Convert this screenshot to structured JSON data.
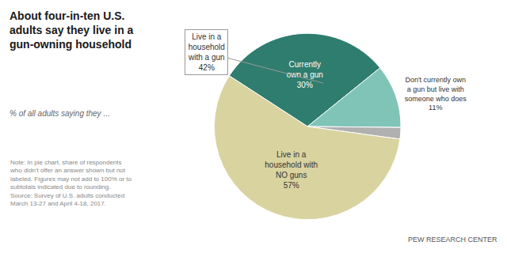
{
  "chart_data": {
    "type": "pie",
    "title": "About four-in-ten U.S.\nadults say they live in a\ngun-owning household",
    "subtitle": "% of all adults saying they ...",
    "categories": [
      "Currently\nown a gun",
      "Don't currently own\na gun but live with\nsomeone who does",
      null,
      "Live in a\nhousehold with\nNO guns"
    ],
    "values": [
      30,
      11,
      2,
      57
    ],
    "value_labels": [
      "30%",
      "11%",
      null,
      "57%"
    ],
    "colors": [
      "#2e7d6e",
      "#80c4b7",
      "#b0b0b0",
      "#d9d3a0"
    ],
    "annotation": "Live in a\nhousehold\nwith a gun\n42%",
    "note": "Note: In pie chart, share of respondents\nwho didn't offer an answer shown but not\nlabeled. Figures may not add to 100% or to\nsubtotals indicated due to rounding.\nSource: Survey of U.S. adults conducted\nMarch 13-27 and April 4-18, 2017.",
    "branding": "PEW RESEARCH CENTER"
  }
}
